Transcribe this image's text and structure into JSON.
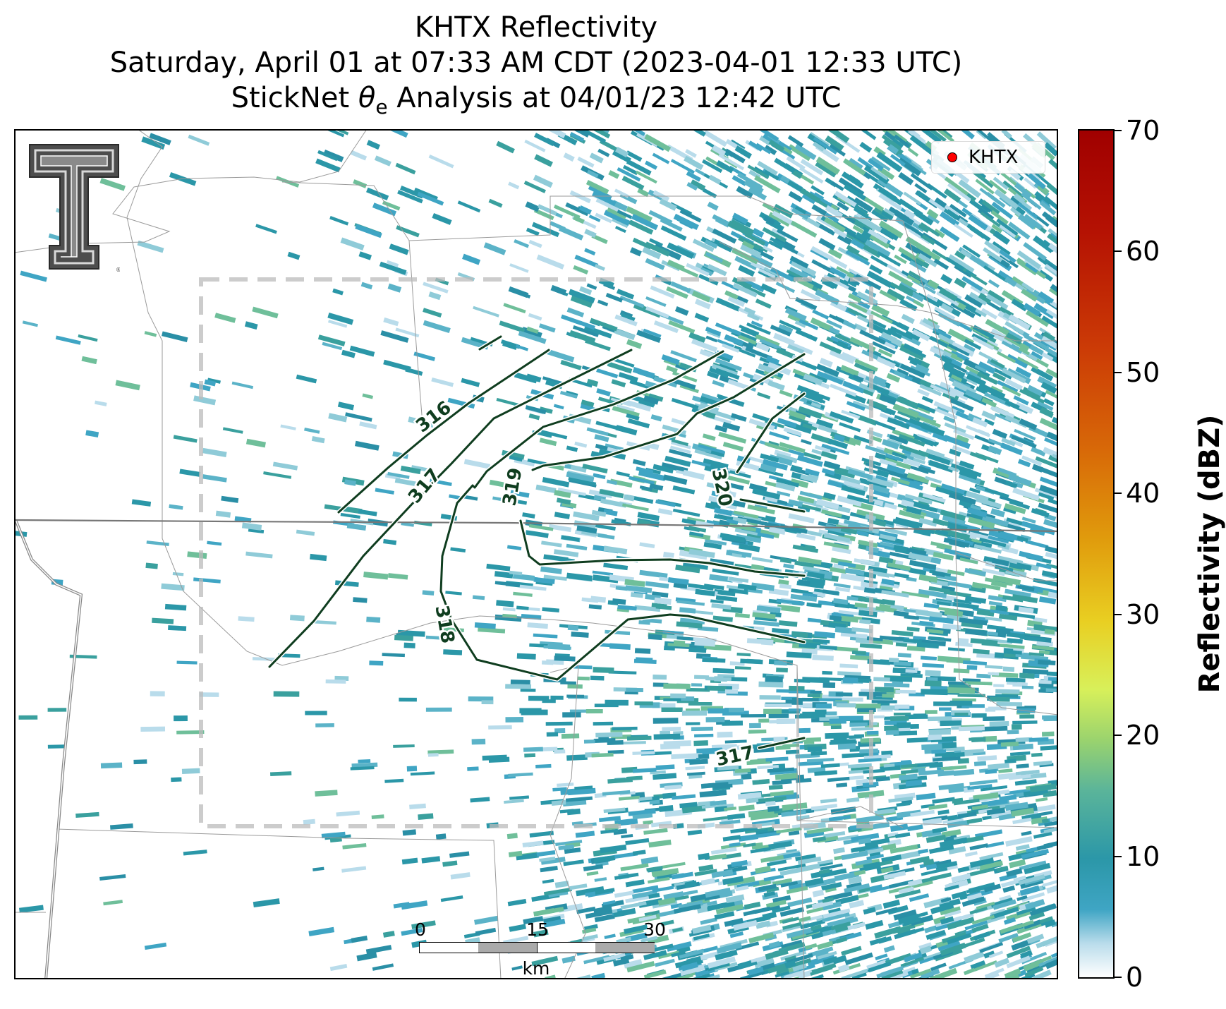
{
  "title": {
    "line1": "KHTX Reflectivity",
    "line2": "Saturday, April 01 at 07:33 AM CDT (2023-04-01 12:33 UTC)",
    "line3_prefix": "StickNet ",
    "line3_symbol": "θ",
    "line3_subscript": "e",
    "line3_suffix": " Analysis at 04/01/23 12:42 UTC"
  },
  "legend": {
    "label": "KHTX",
    "marker_color": "#ff0000"
  },
  "colorbar": {
    "title": "Reflectivity (dBZ)",
    "ticks": [
      "0",
      "10",
      "20",
      "30",
      "40",
      "50",
      "60",
      "70"
    ],
    "range": [
      0,
      70
    ],
    "colors": [
      "#ffffff",
      "#3fa5c4",
      "#2b97a8",
      "#9ad36e",
      "#e9cf22",
      "#d86a08",
      "#cc3c06",
      "#a00000"
    ]
  },
  "scalebar": {
    "labels": [
      "0",
      "15",
      "30"
    ],
    "unit": "km"
  },
  "contours": {
    "color": "#0f3d1f",
    "labels": [
      "316",
      "317",
      "318",
      "319",
      "320",
      "317"
    ]
  },
  "map": {
    "echo_color": "#2b97a8",
    "study_area_style": "dashed gray rectangle",
    "logo_icon": "texas-tech-double-t-logo"
  }
}
